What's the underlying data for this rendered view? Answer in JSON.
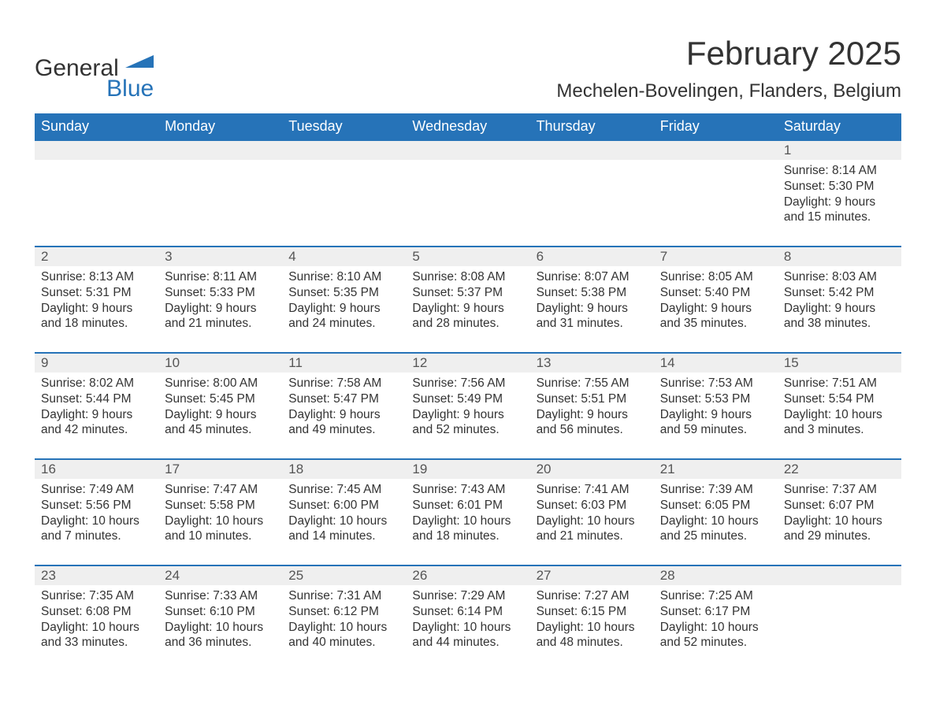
{
  "brand": {
    "part1": "General",
    "part2": "Blue",
    "accent_color": "#2673b8"
  },
  "title": "February 2025",
  "location": "Mechelen-Bovelingen, Flanders, Belgium",
  "layout": {
    "type": "calendar",
    "columns": 7,
    "rows": 5,
    "header_bg": "#2673b8",
    "header_fg": "#ffffff",
    "daynum_bg": "#efefef",
    "row_divider_color": "#2673b8",
    "body_bg": "#ffffff",
    "text_color": "#333333",
    "font_family": "Segoe UI, Arial, sans-serif",
    "title_fontsize": 42,
    "location_fontsize": 24,
    "header_fontsize": 18,
    "cell_fontsize": 15.5
  },
  "weekdays": [
    "Sunday",
    "Monday",
    "Tuesday",
    "Wednesday",
    "Thursday",
    "Friday",
    "Saturday"
  ],
  "weeks": [
    [
      null,
      null,
      null,
      null,
      null,
      null,
      {
        "day": "1",
        "sunrise": "Sunrise: 8:14 AM",
        "sunset": "Sunset: 5:30 PM",
        "daylight1": "Daylight: 9 hours",
        "daylight2": "and 15 minutes."
      }
    ],
    [
      {
        "day": "2",
        "sunrise": "Sunrise: 8:13 AM",
        "sunset": "Sunset: 5:31 PM",
        "daylight1": "Daylight: 9 hours",
        "daylight2": "and 18 minutes."
      },
      {
        "day": "3",
        "sunrise": "Sunrise: 8:11 AM",
        "sunset": "Sunset: 5:33 PM",
        "daylight1": "Daylight: 9 hours",
        "daylight2": "and 21 minutes."
      },
      {
        "day": "4",
        "sunrise": "Sunrise: 8:10 AM",
        "sunset": "Sunset: 5:35 PM",
        "daylight1": "Daylight: 9 hours",
        "daylight2": "and 24 minutes."
      },
      {
        "day": "5",
        "sunrise": "Sunrise: 8:08 AM",
        "sunset": "Sunset: 5:37 PM",
        "daylight1": "Daylight: 9 hours",
        "daylight2": "and 28 minutes."
      },
      {
        "day": "6",
        "sunrise": "Sunrise: 8:07 AM",
        "sunset": "Sunset: 5:38 PM",
        "daylight1": "Daylight: 9 hours",
        "daylight2": "and 31 minutes."
      },
      {
        "day": "7",
        "sunrise": "Sunrise: 8:05 AM",
        "sunset": "Sunset: 5:40 PM",
        "daylight1": "Daylight: 9 hours",
        "daylight2": "and 35 minutes."
      },
      {
        "day": "8",
        "sunrise": "Sunrise: 8:03 AM",
        "sunset": "Sunset: 5:42 PM",
        "daylight1": "Daylight: 9 hours",
        "daylight2": "and 38 minutes."
      }
    ],
    [
      {
        "day": "9",
        "sunrise": "Sunrise: 8:02 AM",
        "sunset": "Sunset: 5:44 PM",
        "daylight1": "Daylight: 9 hours",
        "daylight2": "and 42 minutes."
      },
      {
        "day": "10",
        "sunrise": "Sunrise: 8:00 AM",
        "sunset": "Sunset: 5:45 PM",
        "daylight1": "Daylight: 9 hours",
        "daylight2": "and 45 minutes."
      },
      {
        "day": "11",
        "sunrise": "Sunrise: 7:58 AM",
        "sunset": "Sunset: 5:47 PM",
        "daylight1": "Daylight: 9 hours",
        "daylight2": "and 49 minutes."
      },
      {
        "day": "12",
        "sunrise": "Sunrise: 7:56 AM",
        "sunset": "Sunset: 5:49 PM",
        "daylight1": "Daylight: 9 hours",
        "daylight2": "and 52 minutes."
      },
      {
        "day": "13",
        "sunrise": "Sunrise: 7:55 AM",
        "sunset": "Sunset: 5:51 PM",
        "daylight1": "Daylight: 9 hours",
        "daylight2": "and 56 minutes."
      },
      {
        "day": "14",
        "sunrise": "Sunrise: 7:53 AM",
        "sunset": "Sunset: 5:53 PM",
        "daylight1": "Daylight: 9 hours",
        "daylight2": "and 59 minutes."
      },
      {
        "day": "15",
        "sunrise": "Sunrise: 7:51 AM",
        "sunset": "Sunset: 5:54 PM",
        "daylight1": "Daylight: 10 hours",
        "daylight2": "and 3 minutes."
      }
    ],
    [
      {
        "day": "16",
        "sunrise": "Sunrise: 7:49 AM",
        "sunset": "Sunset: 5:56 PM",
        "daylight1": "Daylight: 10 hours",
        "daylight2": "and 7 minutes."
      },
      {
        "day": "17",
        "sunrise": "Sunrise: 7:47 AM",
        "sunset": "Sunset: 5:58 PM",
        "daylight1": "Daylight: 10 hours",
        "daylight2": "and 10 minutes."
      },
      {
        "day": "18",
        "sunrise": "Sunrise: 7:45 AM",
        "sunset": "Sunset: 6:00 PM",
        "daylight1": "Daylight: 10 hours",
        "daylight2": "and 14 minutes."
      },
      {
        "day": "19",
        "sunrise": "Sunrise: 7:43 AM",
        "sunset": "Sunset: 6:01 PM",
        "daylight1": "Daylight: 10 hours",
        "daylight2": "and 18 minutes."
      },
      {
        "day": "20",
        "sunrise": "Sunrise: 7:41 AM",
        "sunset": "Sunset: 6:03 PM",
        "daylight1": "Daylight: 10 hours",
        "daylight2": "and 21 minutes."
      },
      {
        "day": "21",
        "sunrise": "Sunrise: 7:39 AM",
        "sunset": "Sunset: 6:05 PM",
        "daylight1": "Daylight: 10 hours",
        "daylight2": "and 25 minutes."
      },
      {
        "day": "22",
        "sunrise": "Sunrise: 7:37 AM",
        "sunset": "Sunset: 6:07 PM",
        "daylight1": "Daylight: 10 hours",
        "daylight2": "and 29 minutes."
      }
    ],
    [
      {
        "day": "23",
        "sunrise": "Sunrise: 7:35 AM",
        "sunset": "Sunset: 6:08 PM",
        "daylight1": "Daylight: 10 hours",
        "daylight2": "and 33 minutes."
      },
      {
        "day": "24",
        "sunrise": "Sunrise: 7:33 AM",
        "sunset": "Sunset: 6:10 PM",
        "daylight1": "Daylight: 10 hours",
        "daylight2": "and 36 minutes."
      },
      {
        "day": "25",
        "sunrise": "Sunrise: 7:31 AM",
        "sunset": "Sunset: 6:12 PM",
        "daylight1": "Daylight: 10 hours",
        "daylight2": "and 40 minutes."
      },
      {
        "day": "26",
        "sunrise": "Sunrise: 7:29 AM",
        "sunset": "Sunset: 6:14 PM",
        "daylight1": "Daylight: 10 hours",
        "daylight2": "and 44 minutes."
      },
      {
        "day": "27",
        "sunrise": "Sunrise: 7:27 AM",
        "sunset": "Sunset: 6:15 PM",
        "daylight1": "Daylight: 10 hours",
        "daylight2": "and 48 minutes."
      },
      {
        "day": "28",
        "sunrise": "Sunrise: 7:25 AM",
        "sunset": "Sunset: 6:17 PM",
        "daylight1": "Daylight: 10 hours",
        "daylight2": "and 52 minutes."
      },
      null
    ]
  ]
}
